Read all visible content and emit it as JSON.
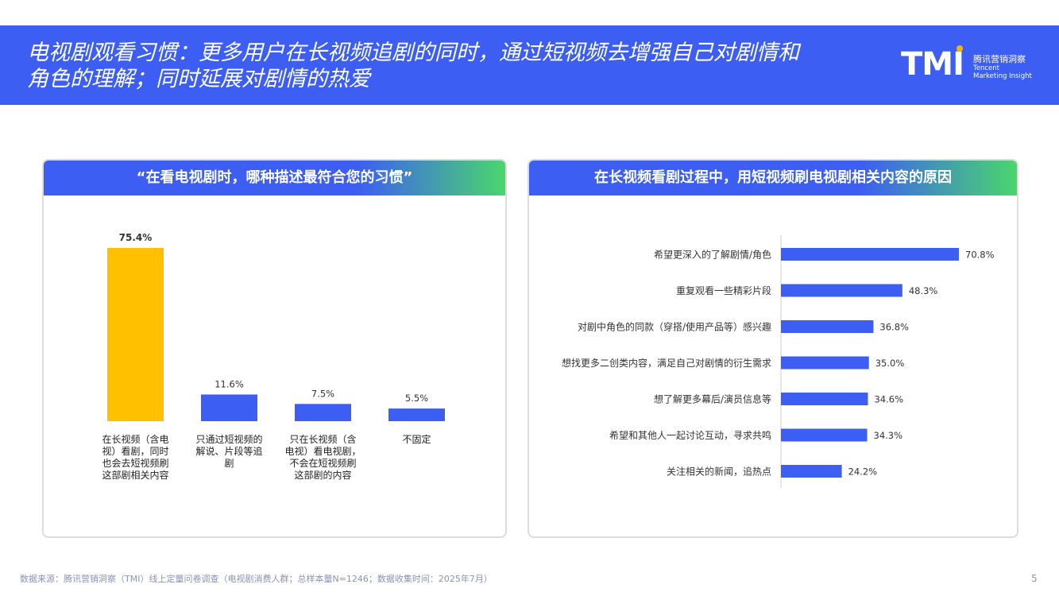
{
  "header": {
    "title_line1": "电视剧观看习惯：更多用户在长视频追剧的同时，通过短视频去增强自己对剧情和",
    "title_line2": "角色的理解；同时延展对剧情的热爱"
  },
  "logo": {
    "mark": "TMI",
    "cn": "腾讯营销洞察",
    "en_line1": "Tencent",
    "en_line2": "Marketing Insight"
  },
  "colors": {
    "brand_blue": "#3d5ef2",
    "highlight": "#ffc000",
    "green": "#4ad66d"
  },
  "chart_data": [
    {
      "type": "bar",
      "title": "“在看电视剧时，哪种描述最符合您的习惯”",
      "categories": [
        [
          "在长视频（含电",
          "视）看剧，同时",
          "也会去短视频刷",
          "这部剧相关内容"
        ],
        [
          "只通过短视频的",
          "解说、片段等追",
          "剧"
        ],
        [
          "只在长视频（含",
          "电视）看电视剧，",
          "不会在短视频刷",
          "这部剧的内容"
        ],
        [
          "不固定"
        ]
      ],
      "values": [
        75.4,
        11.6,
        7.5,
        5.5
      ],
      "value_labels": [
        "75.4%",
        "11.6%",
        "7.5%",
        "5.5%"
      ],
      "highlight_index": 0,
      "ylim": [
        0,
        80
      ],
      "grid": false
    },
    {
      "type": "bar",
      "orientation": "horizontal",
      "title": "在长视频看剧过程中，用短视频刷电视剧相关内容的原因",
      "categories": [
        "希望更深入的了解剧情/角色",
        "重复观看一些精彩片段",
        "对剧中角色的同款（穿搭/使用产品等）感兴趣",
        "想找更多二创类内容，满足自己对剧情的衍生需求",
        "想了解更多幕后/演员信息等",
        "希望和其他人一起讨论互动，寻求共鸣",
        "关注相关的新闻，追热点"
      ],
      "values": [
        70.8,
        48.3,
        36.8,
        35.0,
        34.6,
        34.3,
        24.2
      ],
      "value_labels": [
        "70.8%",
        "48.3%",
        "36.8%",
        "35.0%",
        "34.6%",
        "34.3%",
        "24.2%"
      ],
      "xlim": [
        0,
        80
      ],
      "grid": false
    }
  ],
  "footer": {
    "source": "数据来源：腾讯营销洞察（TMI）线上定量问卷调查（电视剧消费人群；总样本量N=1246；数据收集时间：2025年7月）",
    "page": "5"
  }
}
